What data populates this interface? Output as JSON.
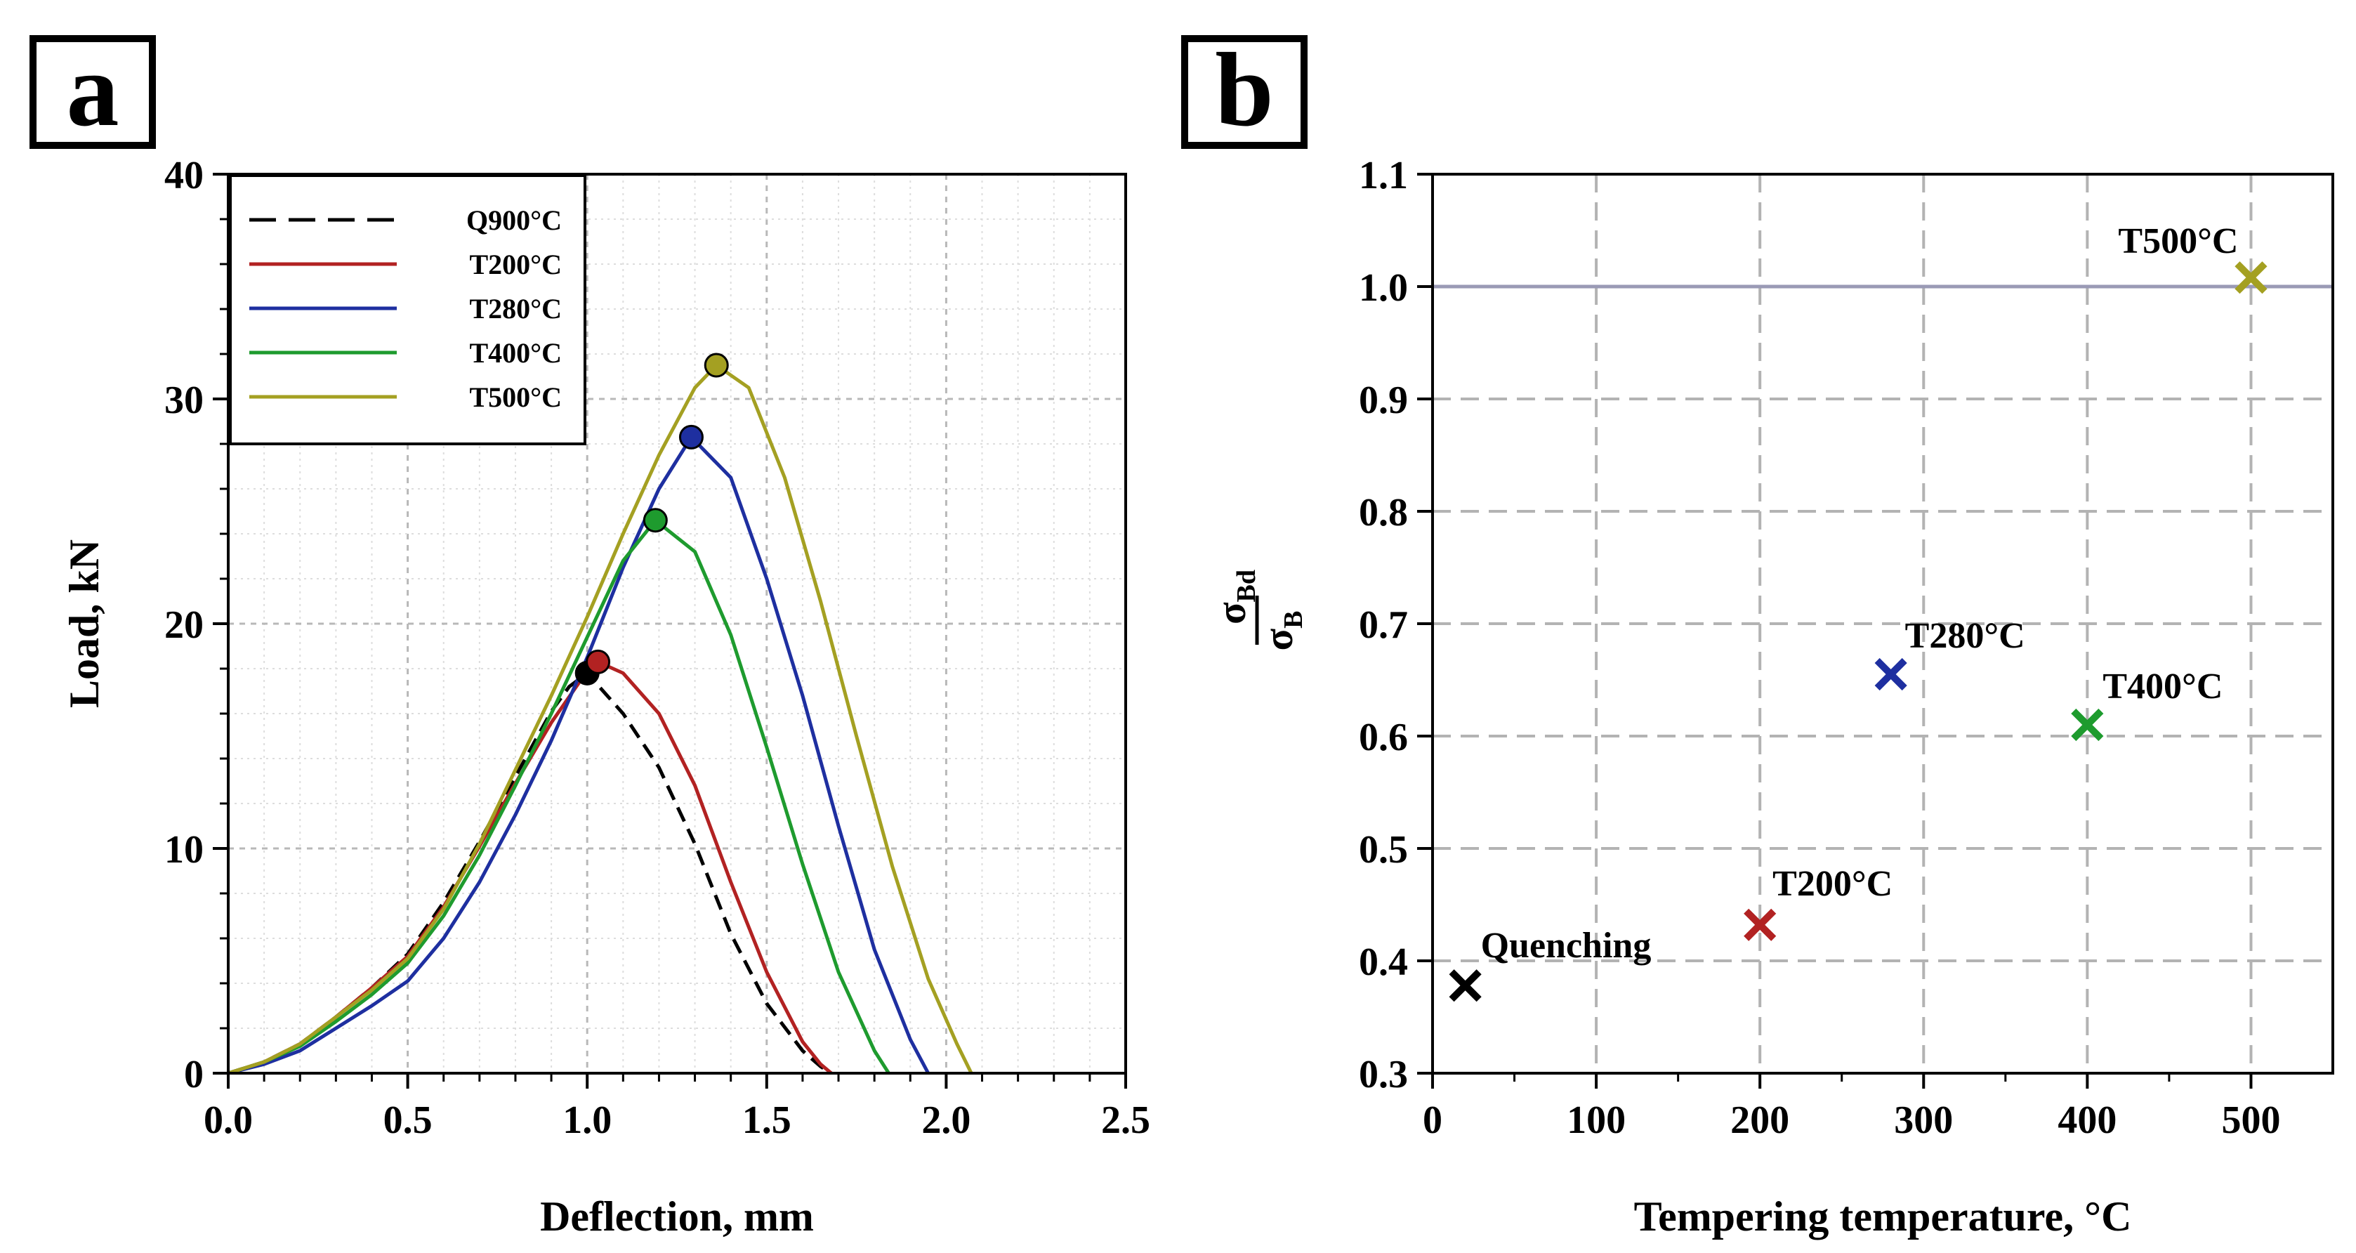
{
  "chart_data": [
    {
      "panel": "a",
      "type": "line",
      "title": "",
      "xlabel": "Deflection, mm",
      "ylabel": "Load, kN",
      "xlim": [
        0,
        2.5
      ],
      "ylim": [
        0,
        40
      ],
      "xticks": [
        "0.0",
        "0.5",
        "1.0",
        "1.5",
        "2.0",
        "2.5"
      ],
      "xtick_values": [
        0,
        0.5,
        1.0,
        1.5,
        2.0,
        2.5
      ],
      "yticks": [
        "0",
        "10",
        "20",
        "30",
        "40"
      ],
      "ytick_values": [
        0,
        10,
        20,
        30,
        40
      ],
      "grid": "dotted",
      "legend_position": "top-left",
      "series": [
        {
          "name": "Q900°C",
          "color": "#000000",
          "dash": true,
          "x": [
            0,
            0.1,
            0.2,
            0.3,
            0.4,
            0.5,
            0.6,
            0.7,
            0.8,
            0.9,
            0.95,
            1.0,
            1.1,
            1.2,
            1.3,
            1.4,
            1.5,
            1.6,
            1.65,
            1.68
          ],
          "y": [
            0,
            0.5,
            1.3,
            2.5,
            3.8,
            5.3,
            7.6,
            10.3,
            13.2,
            16.1,
            17.2,
            17.8,
            16.0,
            13.6,
            10.2,
            6.2,
            3.1,
            1.0,
            0.3,
            0
          ],
          "peak": [
            1.0,
            17.8
          ]
        },
        {
          "name": "T200°C",
          "color": "#b22222",
          "dash": false,
          "x": [
            0,
            0.1,
            0.2,
            0.3,
            0.4,
            0.5,
            0.6,
            0.7,
            0.8,
            0.9,
            1.0,
            1.03,
            1.1,
            1.2,
            1.3,
            1.4,
            1.5,
            1.6,
            1.65,
            1.68
          ],
          "y": [
            0,
            0.5,
            1.3,
            2.5,
            3.8,
            5.2,
            7.4,
            10.1,
            12.9,
            15.6,
            17.9,
            18.3,
            17.8,
            16.0,
            12.8,
            8.5,
            4.5,
            1.4,
            0.4,
            0
          ],
          "peak": [
            1.03,
            18.3
          ]
        },
        {
          "name": "T280°C",
          "color": "#1e2fa0",
          "dash": false,
          "x": [
            0,
            0.1,
            0.2,
            0.3,
            0.4,
            0.5,
            0.6,
            0.7,
            0.8,
            0.9,
            1.0,
            1.1,
            1.2,
            1.29,
            1.4,
            1.5,
            1.6,
            1.7,
            1.8,
            1.9,
            1.95
          ],
          "y": [
            0,
            0.4,
            1.0,
            2.0,
            3.0,
            4.1,
            6.0,
            8.5,
            11.5,
            14.8,
            18.5,
            22.5,
            26.0,
            28.3,
            26.5,
            22.0,
            16.8,
            11.0,
            5.5,
            1.5,
            0
          ],
          "peak": [
            1.29,
            28.3
          ]
        },
        {
          "name": "T400°C",
          "color": "#1e9b2e",
          "dash": false,
          "x": [
            0,
            0.1,
            0.2,
            0.3,
            0.4,
            0.5,
            0.6,
            0.7,
            0.8,
            0.9,
            1.0,
            1.1,
            1.19,
            1.3,
            1.4,
            1.5,
            1.6,
            1.7,
            1.8,
            1.84
          ],
          "y": [
            0,
            0.5,
            1.2,
            2.3,
            3.5,
            4.9,
            7.0,
            9.7,
            12.8,
            16.0,
            19.4,
            22.8,
            24.6,
            23.2,
            19.5,
            14.5,
            9.3,
            4.5,
            1.0,
            0
          ],
          "peak": [
            1.19,
            24.6
          ]
        },
        {
          "name": "T500°C",
          "color": "#a4a022",
          "dash": false,
          "x": [
            0,
            0.1,
            0.2,
            0.3,
            0.4,
            0.5,
            0.6,
            0.7,
            0.8,
            0.9,
            1.0,
            1.1,
            1.2,
            1.3,
            1.36,
            1.45,
            1.55,
            1.65,
            1.75,
            1.85,
            1.95,
            2.03,
            2.07
          ],
          "y": [
            0,
            0.5,
            1.3,
            2.5,
            3.7,
            5.1,
            7.3,
            10.2,
            13.5,
            16.8,
            20.3,
            24.0,
            27.5,
            30.5,
            31.5,
            30.5,
            26.5,
            21.0,
            15.0,
            9.2,
            4.2,
            1.3,
            0
          ],
          "peak": [
            1.36,
            31.5
          ]
        }
      ]
    },
    {
      "panel": "b",
      "type": "scatter",
      "title": "",
      "xlabel": "Tempering temperature, °C",
      "ylabel": "σBd / σB",
      "ylabel_numerator": "σ",
      "ylabel_numerator_sub": "Bd",
      "ylabel_denominator": "σ",
      "ylabel_denominator_sub": "B",
      "xlim": [
        0,
        550
      ],
      "ylim": [
        0.3,
        1.1
      ],
      "xticks": [
        "0",
        "100",
        "200",
        "300",
        "400",
        "500"
      ],
      "xtick_values": [
        0,
        100,
        200,
        300,
        400,
        500
      ],
      "yticks": [
        "0.3",
        "0.4",
        "0.5",
        "0.6",
        "0.7",
        "0.8",
        "0.9",
        "1.0",
        "1.1"
      ],
      "ytick_values": [
        0.3,
        0.4,
        0.5,
        0.6,
        0.7,
        0.8,
        0.9,
        1.0,
        1.1
      ],
      "grid": "dashed",
      "reference_line": {
        "y": 1.0,
        "color": "#9a9ab5"
      },
      "points": [
        {
          "label": "Quenching",
          "x": 20,
          "y": 0.378,
          "color": "#000000"
        },
        {
          "label": "T200°C",
          "x": 200,
          "y": 0.432,
          "color": "#b22222"
        },
        {
          "label": "T280°C",
          "x": 280,
          "y": 0.655,
          "color": "#1e2fa0"
        },
        {
          "label": "T400°C",
          "x": 400,
          "y": 0.61,
          "color": "#1e9b2e"
        },
        {
          "label": "T500°C",
          "x": 500,
          "y": 1.008,
          "color": "#a4a022"
        }
      ]
    }
  ],
  "panel_labels": {
    "a": "a",
    "b": "b"
  }
}
